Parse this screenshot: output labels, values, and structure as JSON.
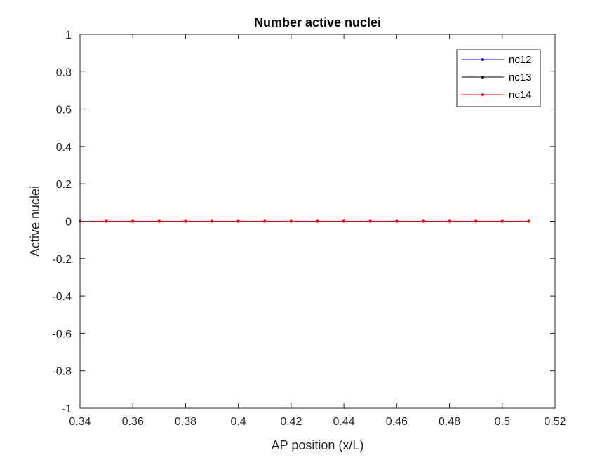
{
  "chart_data": {
    "type": "line",
    "title": "Number active nuclei",
    "xlabel": "AP position (x/L)",
    "ylabel": "Active nuclei",
    "xlim": [
      0.34,
      0.52
    ],
    "ylim": [
      -1,
      1
    ],
    "xticks": [
      0.34,
      0.36,
      0.38,
      0.4,
      0.42,
      0.44,
      0.46,
      0.48,
      0.5,
      0.52
    ],
    "xtick_labels": [
      "0.34",
      "0.36",
      "0.38",
      "0.4",
      "0.42",
      "0.44",
      "0.46",
      "0.48",
      "0.5",
      "0.52"
    ],
    "yticks": [
      -1,
      -0.8,
      -0.6,
      -0.4,
      -0.2,
      0,
      0.2,
      0.4,
      0.6,
      0.8,
      1
    ],
    "ytick_labels": [
      "-1",
      "-0.8",
      "-0.6",
      "-0.4",
      "-0.2",
      "0",
      "0.2",
      "0.4",
      "0.6",
      "0.8",
      "1"
    ],
    "grid": false,
    "legend_position": "top-right",
    "x": [
      0.34,
      0.35,
      0.36,
      0.37,
      0.38,
      0.39,
      0.4,
      0.41,
      0.42,
      0.43,
      0.44,
      0.45,
      0.46,
      0.47,
      0.48,
      0.49,
      0.5,
      0.51
    ],
    "series": [
      {
        "name": "nc12",
        "color": "#0000ff",
        "values": [
          0,
          0,
          0,
          0,
          0,
          0,
          0,
          0,
          0,
          0,
          0,
          0,
          0,
          0,
          0,
          0,
          0,
          0
        ]
      },
      {
        "name": "nc13",
        "color": "#000000",
        "values": [
          0,
          0,
          0,
          0,
          0,
          0,
          0,
          0,
          0,
          0,
          0,
          0,
          0,
          0,
          0,
          0,
          0,
          0
        ]
      },
      {
        "name": "nc14",
        "color": "#ff0000",
        "values": [
          0,
          0,
          0,
          0,
          0,
          0,
          0,
          0,
          0,
          0,
          0,
          0,
          0,
          0,
          0,
          0,
          0,
          0
        ]
      }
    ]
  }
}
